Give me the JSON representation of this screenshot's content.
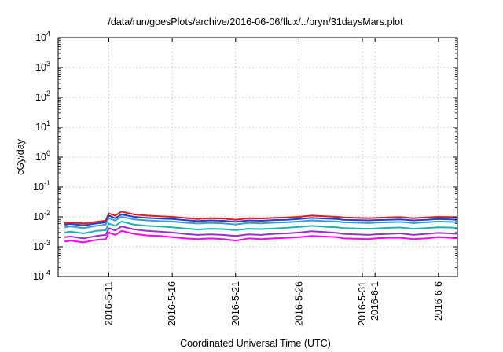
{
  "chart_data": {
    "type": "line",
    "title": "/data/run/goesPlots/archive/2016-06-06/flux/../bryn/31daysMars.plot",
    "xlabel": "Coordinated Universal Time (UTC)",
    "ylabel": "cGy/day",
    "yscale": "log",
    "ylim": [
      0.0001,
      10000
    ],
    "xlim": [
      "2016-05-07T00:00",
      "2016-06-07T12:00"
    ],
    "grid": true,
    "legend": "none",
    "x_ticks": [
      "2016-5-11",
      "2016-5-16",
      "2016-5-21",
      "2016-5-26",
      "2016-5-31",
      "2016-6-1",
      "2016-6-6"
    ],
    "y_ticks": [
      {
        "base": "10",
        "exp": "-4",
        "value": 0.0001
      },
      {
        "base": "10",
        "exp": "-3",
        "value": 0.001
      },
      {
        "base": "10",
        "exp": "-2",
        "value": 0.01
      },
      {
        "base": "10",
        "exp": "-1",
        "value": 0.1
      },
      {
        "base": "10",
        "exp": "0",
        "value": 1
      },
      {
        "base": "10",
        "exp": "1",
        "value": 10
      },
      {
        "base": "10",
        "exp": "2",
        "value": 100
      },
      {
        "base": "10",
        "exp": "3",
        "value": 1000
      },
      {
        "base": "10",
        "exp": "4",
        "value": 10000
      }
    ],
    "x": [
      "2016-05-07T12:00",
      "2016-05-08",
      "2016-05-09",
      "2016-05-10",
      "2016-05-10T18:00",
      "2016-05-11",
      "2016-05-11T12:00",
      "2016-05-12",
      "2016-05-13",
      "2016-05-14",
      "2016-05-15",
      "2016-05-16",
      "2016-05-17",
      "2016-05-18",
      "2016-05-19",
      "2016-05-20",
      "2016-05-21",
      "2016-05-22",
      "2016-05-23",
      "2016-05-24",
      "2016-05-25",
      "2016-05-26",
      "2016-05-27",
      "2016-05-28",
      "2016-05-29",
      "2016-05-29T12:00",
      "2016-05-31T12:00",
      "2016-06-01",
      "2016-06-02",
      "2016-06-03",
      "2016-06-04",
      "2016-06-05",
      "2016-06-06",
      "2016-06-07",
      "2016-06-07T12:00"
    ],
    "series": [
      {
        "color": "#e41a1c",
        "values": [
          0.0062,
          0.0065,
          0.006,
          0.0068,
          0.0075,
          0.013,
          0.011,
          0.015,
          0.012,
          0.011,
          0.0105,
          0.01,
          0.0092,
          0.0085,
          0.009,
          0.0088,
          0.008,
          0.009,
          0.0088,
          0.0092,
          0.0095,
          0.01,
          0.011,
          0.0105,
          0.01,
          0.0095,
          0.009,
          0.0092,
          0.0095,
          0.0098,
          0.009,
          0.0095,
          0.01,
          0.0098,
          0.0095
        ]
      },
      {
        "color": "#1f3fd0",
        "values": [
          0.0055,
          0.0058,
          0.0052,
          0.006,
          0.0065,
          0.011,
          0.009,
          0.012,
          0.01,
          0.0092,
          0.0088,
          0.0085,
          0.0078,
          0.0072,
          0.0076,
          0.0074,
          0.0068,
          0.0076,
          0.0074,
          0.0078,
          0.008,
          0.0085,
          0.0092,
          0.0088,
          0.0085,
          0.008,
          0.0076,
          0.0078,
          0.008,
          0.0082,
          0.0076,
          0.008,
          0.0085,
          0.0082,
          0.008
        ]
      },
      {
        "color": "#3a9bdc",
        "values": [
          0.0045,
          0.0048,
          0.0042,
          0.005,
          0.0055,
          0.009,
          0.0075,
          0.01,
          0.0082,
          0.0076,
          0.0072,
          0.007,
          0.0064,
          0.006,
          0.0063,
          0.0061,
          0.0056,
          0.0063,
          0.0061,
          0.0064,
          0.0066,
          0.007,
          0.0076,
          0.0072,
          0.007,
          0.0066,
          0.0062,
          0.0064,
          0.0066,
          0.0068,
          0.0062,
          0.0066,
          0.007,
          0.0068,
          0.0066
        ]
      },
      {
        "color": "#20b2aa",
        "values": [
          0.003,
          0.0032,
          0.0028,
          0.0034,
          0.0036,
          0.006,
          0.005,
          0.007,
          0.0055,
          0.005,
          0.0048,
          0.0045,
          0.0041,
          0.0038,
          0.004,
          0.0039,
          0.0036,
          0.004,
          0.0039,
          0.0041,
          0.0043,
          0.0046,
          0.005,
          0.0047,
          0.0045,
          0.0042,
          0.004,
          0.0041,
          0.0043,
          0.0044,
          0.004,
          0.0042,
          0.0045,
          0.0044,
          0.0042
        ]
      },
      {
        "color": "#9b30c8",
        "values": [
          0.0021,
          0.0022,
          0.0019,
          0.0023,
          0.0025,
          0.0042,
          0.0035,
          0.0048,
          0.0038,
          0.0034,
          0.0032,
          0.003,
          0.0027,
          0.0025,
          0.0026,
          0.0025,
          0.0023,
          0.0026,
          0.0025,
          0.0027,
          0.0028,
          0.003,
          0.0033,
          0.0031,
          0.0029,
          0.0027,
          0.0025,
          0.0026,
          0.0027,
          0.0028,
          0.0025,
          0.0027,
          0.0029,
          0.0028,
          0.0027
        ]
      },
      {
        "color": "#ff00ff",
        "values": [
          0.0015,
          0.0016,
          0.0014,
          0.0017,
          0.0018,
          0.003,
          0.0025,
          0.0034,
          0.0027,
          0.0024,
          0.0023,
          0.0021,
          0.0019,
          0.0018,
          0.0019,
          0.0018,
          0.0016,
          0.0019,
          0.0018,
          0.0019,
          0.002,
          0.0021,
          0.0023,
          0.0022,
          0.0021,
          0.0019,
          0.0018,
          0.0019,
          0.002,
          0.002,
          0.0018,
          0.0019,
          0.0021,
          0.002,
          0.0019
        ]
      }
    ]
  }
}
